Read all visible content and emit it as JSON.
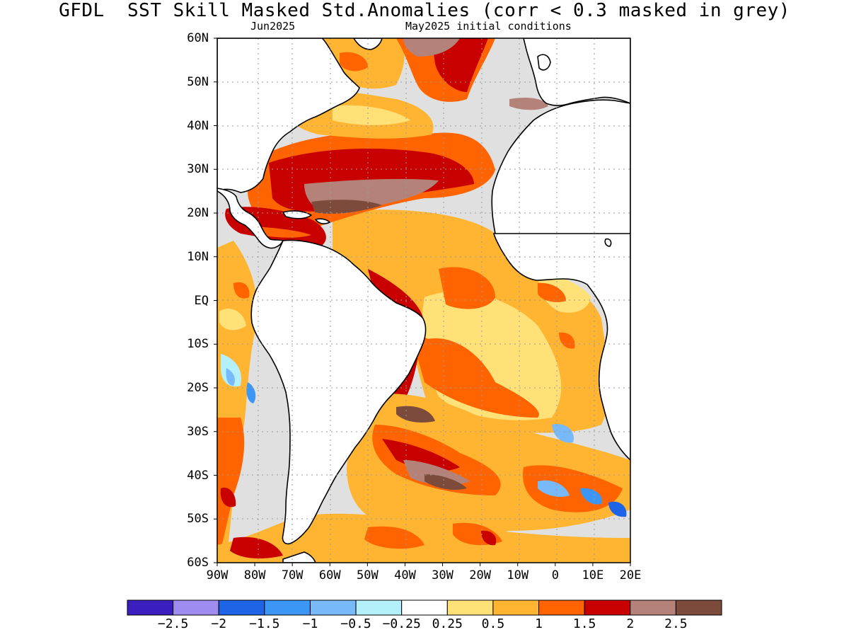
{
  "header": {
    "title": "GFDL  SST Skill Masked Std.Anomalies (corr < 0.3 masked in grey)",
    "target_month": "Jun2025",
    "initial_conditions": "May2025 initial conditions"
  },
  "map": {
    "lat_labels": [
      "60N",
      "50N",
      "40N",
      "30N",
      "20N",
      "10N",
      "EQ",
      "10S",
      "20S",
      "30S",
      "40S",
      "50S",
      "60S"
    ],
    "lon_labels": [
      "90W",
      "80W",
      "70W",
      "60W",
      "50W",
      "40W",
      "30W",
      "20W",
      "10W",
      "0",
      "10E",
      "20E"
    ],
    "mask_color": "#e0e0e0",
    "land_color": "#ffffff"
  },
  "colorbar": {
    "colors": [
      "#3c1ebe",
      "#a08cf0",
      "#1e64e6",
      "#3c96f5",
      "#78b9fa",
      "#b4f0fa",
      "#ffffff",
      "#ffe178",
      "#ffb432",
      "#ff6400",
      "#c80000",
      "#b48278",
      "#7d4b3c"
    ],
    "labels": [
      "-2.5",
      "-2",
      "-1.5",
      "-1",
      "-0.5",
      "-0.25",
      "0.25",
      "0.5",
      "1",
      "1.5",
      "2",
      "2.5"
    ]
  }
}
